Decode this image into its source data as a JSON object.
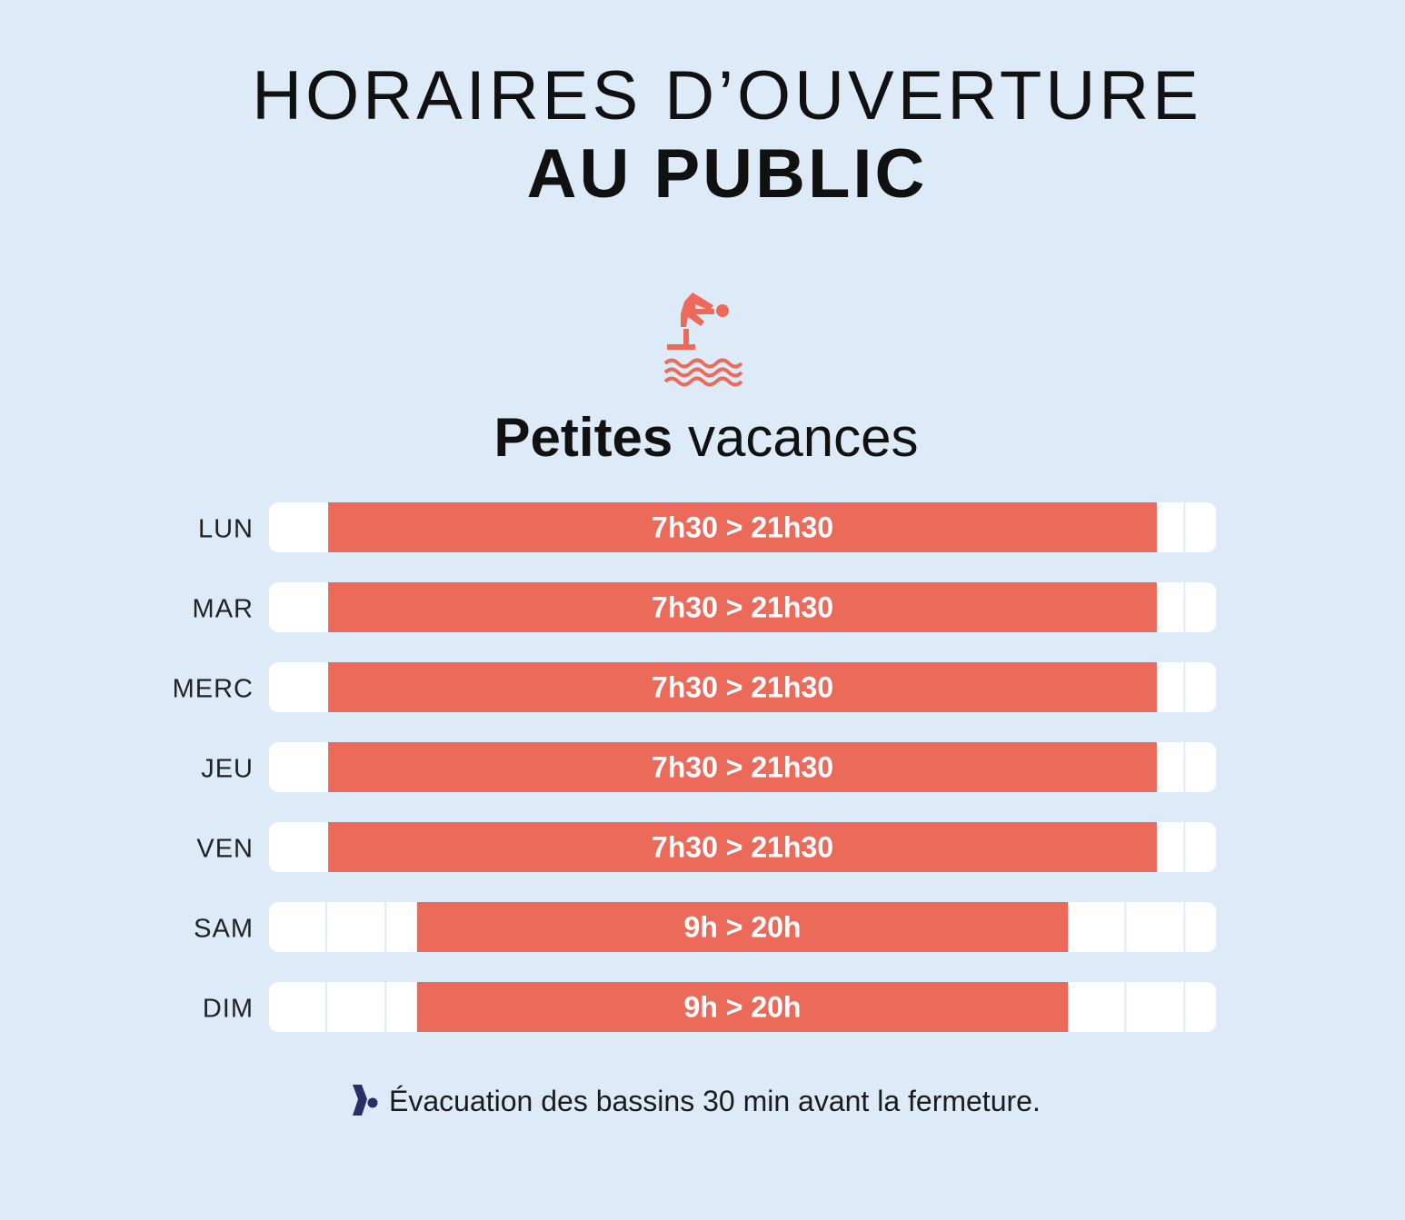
{
  "title": {
    "line1": "HORAIRES D’OUVERTURE",
    "line2": "AU PUBLIC"
  },
  "icon": "diving-swimmer-icon",
  "subtitle": {
    "bold": "Petites",
    "light": "vacances"
  },
  "colors": {
    "background": "#ddeaf7",
    "bar": "#ec6a5a",
    "track": "#ffffff",
    "bullet": "#2a2f66"
  },
  "chart_data": {
    "type": "bar",
    "orientation": "horizontal",
    "title": "Petites vacances",
    "xlim": [
      6.5,
      22.5
    ],
    "grid": "hourly-style tick segments on white track",
    "categories": [
      "LUN",
      "MAR",
      "MERC",
      "JEU",
      "VEN",
      "SAM",
      "DIM"
    ],
    "series": [
      {
        "name": "Horaires d'ouverture",
        "start": [
          7.5,
          7.5,
          7.5,
          7.5,
          7.5,
          9,
          9
        ],
        "end": [
          21.5,
          21.5,
          21.5,
          21.5,
          21.5,
          20,
          20
        ],
        "labels": [
          "7h30 > 21h30",
          "7h30 > 21h30",
          "7h30 > 21h30",
          "7h30 > 21h30",
          "7h30 > 21h30",
          "9h > 20h",
          "9h > 20h"
        ]
      }
    ]
  },
  "footnote": {
    "text": "Évacuation des bassins 30 min avant la fermeture."
  }
}
